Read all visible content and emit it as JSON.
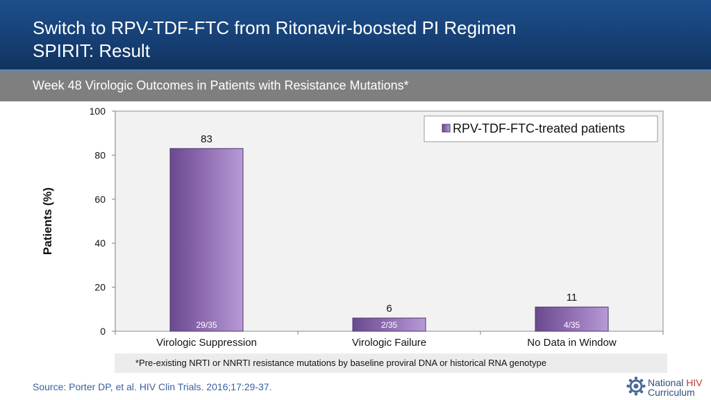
{
  "header": {
    "title_line1": "Switch to RPV-TDF-FTC from Ritonavir-boosted PI Regimen",
    "title_line2": "SPIRIT: Result"
  },
  "subheader": "Week 48 Virologic Outcomes in Patients with Resistance Mutations*",
  "chart_data": {
    "type": "bar",
    "categories": [
      "Virologic Suppression",
      "Virologic Failure",
      "No Data in Window"
    ],
    "series": [
      {
        "name": "RPV-TDF-FTC-treated patients",
        "values": [
          83,
          6,
          11
        ],
        "counts": [
          "29/35",
          "2/35",
          "4/35"
        ],
        "color": "#8e6bb0"
      }
    ],
    "ylabel": "Patients (%)",
    "ylim": [
      0,
      100
    ],
    "yticks": [
      0,
      20,
      40,
      60,
      80,
      100
    ],
    "legend": "top-right",
    "grid": false
  },
  "footnote": "*Pre-existing NRTI or NNRTI resistance mutations by baseline proviral DNA or historical RNA genotype",
  "source": "Source: Porter DP, et al. HIV Clin Trials. 2016;17:29-37.",
  "logo": {
    "line1_prefix": "National ",
    "line1_accent": "HIV",
    "line2": "Curriculum"
  }
}
